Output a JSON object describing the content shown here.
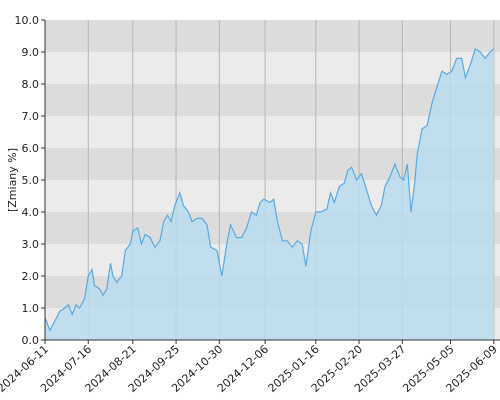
{
  "chart_data": {
    "type": "area",
    "y_label": "[Zmiany %]",
    "color": "#5aa9e0",
    "fill_color": "#b9dcee",
    "grid": true,
    "xlim": [
      "2024-06-11",
      "2025-06-14"
    ],
    "xticks": [
      "2024-06-11",
      "2024-07-16",
      "2024-08-21",
      "2024-09-25",
      "2024-10-30",
      "2024-12-06",
      "2025-01-16",
      "2025-02-20",
      "2025-03-27",
      "2025-05-05",
      "2025-06-09"
    ],
    "ylim": [
      0,
      10
    ],
    "yticks": [
      {
        "value": 0,
        "label": "0.0"
      },
      {
        "value": 1,
        "label": "1.0"
      },
      {
        "value": 2,
        "label": "2.0"
      },
      {
        "value": 3,
        "label": "3.0"
      },
      {
        "value": 4,
        "label": "4.0"
      },
      {
        "value": 5,
        "label": "5.0"
      },
      {
        "value": 6,
        "label": "6.0"
      },
      {
        "value": 7,
        "label": "7.0"
      },
      {
        "value": 8,
        "label": "8.0"
      },
      {
        "value": 9,
        "label": "9.0"
      },
      {
        "value": 10,
        "label": "10.0"
      }
    ],
    "x": [
      "2024-06-11",
      "2024-06-15",
      "2024-06-19",
      "2024-06-23",
      "2024-06-27",
      "2024-06-30",
      "2024-07-03",
      "2024-07-06",
      "2024-07-09",
      "2024-07-13",
      "2024-07-16",
      "2024-07-19",
      "2024-07-21",
      "2024-07-25",
      "2024-07-28",
      "2024-07-31",
      "2024-08-03",
      "2024-08-05",
      "2024-08-08",
      "2024-08-12",
      "2024-08-15",
      "2024-08-19",
      "2024-08-21",
      "2024-08-25",
      "2024-08-28",
      "2024-08-31",
      "2024-09-04",
      "2024-09-08",
      "2024-09-12",
      "2024-09-15",
      "2024-09-18",
      "2024-09-21",
      "2024-09-24",
      "2024-09-28",
      "2024-10-01",
      "2024-10-05",
      "2024-10-08",
      "2024-10-12",
      "2024-10-16",
      "2024-10-20",
      "2024-10-23",
      "2024-10-28",
      "2024-11-01",
      "2024-11-05",
      "2024-11-08",
      "2024-11-13",
      "2024-11-17",
      "2024-11-21",
      "2024-11-25",
      "2024-11-29",
      "2024-12-02",
      "2024-12-05",
      "2024-12-10",
      "2024-12-13",
      "2024-12-16",
      "2024-12-20",
      "2024-12-24",
      "2024-12-28",
      "2025-01-01",
      "2025-01-05",
      "2025-01-08",
      "2025-01-12",
      "2025-01-16",
      "2025-01-20",
      "2025-01-25",
      "2025-01-28",
      "2025-01-31",
      "2025-02-04",
      "2025-02-08",
      "2025-02-11",
      "2025-02-14",
      "2025-02-18",
      "2025-02-22",
      "2025-02-26",
      "2025-03-02",
      "2025-03-06",
      "2025-03-10",
      "2025-03-13",
      "2025-03-17",
      "2025-03-21",
      "2025-03-25",
      "2025-03-28",
      "2025-03-31",
      "2025-04-03",
      "2025-04-06",
      "2025-04-08",
      "2025-04-12",
      "2025-04-16",
      "2025-04-20",
      "2025-04-24",
      "2025-04-28",
      "2025-05-02",
      "2025-05-06",
      "2025-05-10",
      "2025-05-14",
      "2025-05-17",
      "2025-05-21",
      "2025-05-25",
      "2025-05-29",
      "2025-06-02",
      "2025-06-06",
      "2025-06-09"
    ],
    "values": [
      0.7,
      0.3,
      0.6,
      0.9,
      1.0,
      1.1,
      0.8,
      1.1,
      1.0,
      1.3,
      2.0,
      2.2,
      1.7,
      1.6,
      1.4,
      1.6,
      2.4,
      2.0,
      1.8,
      2.0,
      2.8,
      3.0,
      3.4,
      3.5,
      3.0,
      3.3,
      3.2,
      2.9,
      3.1,
      3.7,
      3.9,
      3.7,
      4.2,
      4.6,
      4.2,
      4.0,
      3.7,
      3.8,
      3.8,
      3.6,
      2.9,
      2.8,
      2.0,
      3.0,
      3.6,
      3.2,
      3.2,
      3.5,
      4.0,
      3.9,
      4.3,
      4.4,
      4.3,
      4.4,
      3.7,
      3.1,
      3.1,
      2.9,
      3.1,
      3.0,
      2.3,
      3.4,
      4.0,
      4.0,
      4.1,
      4.6,
      4.3,
      4.8,
      4.9,
      5.3,
      5.4,
      5.0,
      5.2,
      4.7,
      4.2,
      3.9,
      4.2,
      4.8,
      5.1,
      5.5,
      5.1,
      5.0,
      5.5,
      4.0,
      4.9,
      5.8,
      6.6,
      6.7,
      7.4,
      7.9,
      8.4,
      8.3,
      8.4,
      8.8,
      8.8,
      8.2,
      8.6,
      9.1,
      9.0,
      8.8,
      9.0,
      9.1
    ]
  }
}
